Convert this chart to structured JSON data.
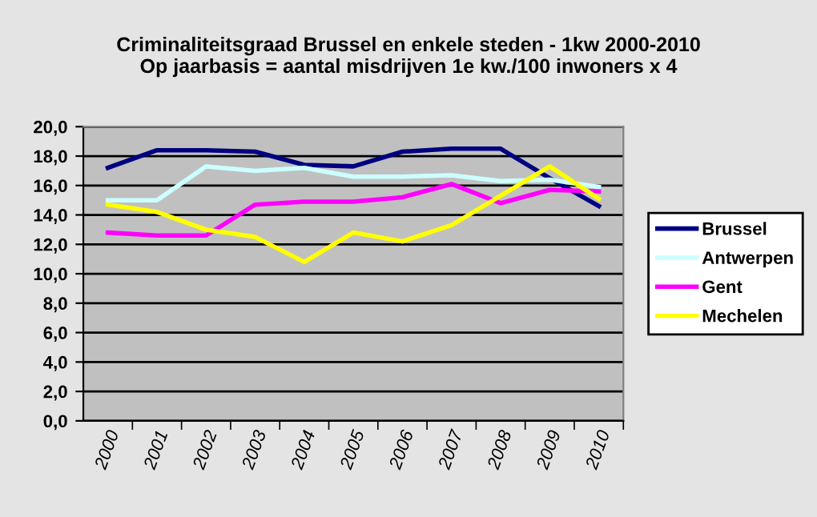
{
  "chart_data": {
    "type": "line",
    "title": "Criminaliteitsgraad Brussel en enkele steden - 1kw 2000-2010\nOp jaarbasis = aantal misdrijven 1e kw./100 inwoners x 4",
    "categories": [
      "2000",
      "2001",
      "2002",
      "2003",
      "2004",
      "2005",
      "2006",
      "2007",
      "2008",
      "2009",
      "2010"
    ],
    "series": [
      {
        "name": "Brussel",
        "color": "#000080",
        "values": [
          17.2,
          18.4,
          18.4,
          18.3,
          17.4,
          17.3,
          18.3,
          18.5,
          18.5,
          16.5,
          14.6
        ]
      },
      {
        "name": "Antwerpen",
        "color": "#ccffff",
        "values": [
          15.0,
          15.0,
          17.3,
          17.0,
          17.2,
          16.6,
          16.6,
          16.7,
          16.3,
          16.4,
          15.9
        ]
      },
      {
        "name": "Gent",
        "color": "#ff00ff",
        "values": [
          12.8,
          12.6,
          12.6,
          14.7,
          14.9,
          14.9,
          15.2,
          16.1,
          14.8,
          15.7,
          15.6
        ]
      },
      {
        "name": "Mechelen",
        "color": "#ffff00",
        "values": [
          14.7,
          14.2,
          13.0,
          12.5,
          10.8,
          12.8,
          12.2,
          13.3,
          15.3,
          17.3,
          15.1
        ]
      }
    ],
    "ylim": [
      0,
      20
    ],
    "yticks": [
      {
        "value": 0,
        "label": "0,0"
      },
      {
        "value": 2,
        "label": "2,0"
      },
      {
        "value": 4,
        "label": "4,0"
      },
      {
        "value": 6,
        "label": "6,0"
      },
      {
        "value": 8,
        "label": "8,0"
      },
      {
        "value": 10,
        "label": "10,0"
      },
      {
        "value": 12,
        "label": "12,0"
      },
      {
        "value": 14,
        "label": "14,0"
      },
      {
        "value": 16,
        "label": "16,0"
      },
      {
        "value": 18,
        "label": "18,0"
      },
      {
        "value": 20,
        "label": "20,0"
      }
    ],
    "grid": "y",
    "legend": "right",
    "marker": "none",
    "line_style": "solid"
  }
}
